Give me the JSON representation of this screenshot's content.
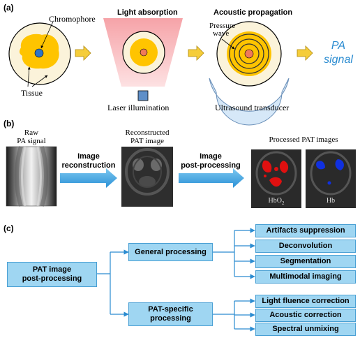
{
  "panel_a": {
    "label": "(a)",
    "chromophore": "Chromophore",
    "tissue": "Tissue",
    "light_absorption": "Light absorption",
    "laser": "Laser illumination",
    "acoustic_propagation": "Acoustic propagation",
    "pressure": "Pressure",
    "wave": "wave",
    "transducer": "Ultrasound transducer",
    "pa_line1": "PA",
    "pa_line2": "signal",
    "colors": {
      "tissue": "#ffc400",
      "chromophore": "#2e75c8",
      "light": "#f7b2b5",
      "pa_text": "#2a8bd0",
      "arrow": "#f0c020"
    }
  },
  "panel_b": {
    "label": "(b)",
    "raw_line1": "Raw",
    "raw_line2": "PA signal",
    "arrow1_line1": "Image",
    "arrow1_line2": "reconstruction",
    "recon_line1": "Reconstructed",
    "recon_line2": "PAT image",
    "arrow2_line1": "Image",
    "arrow2_line2": "post-processing",
    "processed": "Processed PAT images",
    "hbo2_main": "HbO",
    "hbo2_sub": "2",
    "hb": "Hb",
    "colors": {
      "arrow": "#3aa6e0",
      "hbo2": "#e01010",
      "hb": "#1030e0"
    }
  },
  "panel_c": {
    "label": "(c)",
    "root_line1": "PAT image",
    "root_line2": "post-processing",
    "general": "General processing",
    "specific_line1": "PAT-specific",
    "specific_line2": "processing",
    "general_items": [
      "Artifacts suppression",
      "Deconvolution",
      "Segmentation",
      "Multimodal imaging"
    ],
    "specific_items": [
      "Light fluence correction",
      "Acoustic correction",
      "Spectral unmixing"
    ],
    "colors": {
      "box": "#9fd6f2",
      "border": "#4aa0d4",
      "line": "#2a8bd0"
    }
  }
}
